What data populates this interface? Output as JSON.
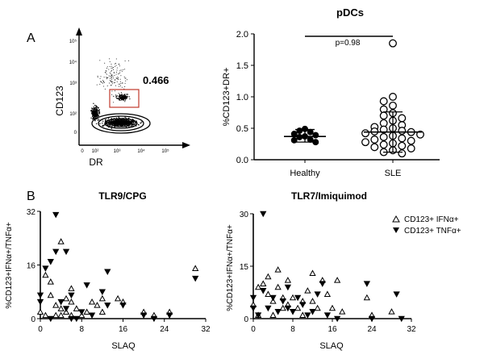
{
  "panel_labels": {
    "a": "A",
    "b": "B"
  },
  "flow": {
    "y_label": "CD123",
    "x_label": "DR",
    "gate_value": "0.466",
    "gate_color": "#c0392b",
    "y_ticks": [
      "10⁵",
      "10⁴",
      "10³",
      "10²",
      "0"
    ],
    "x_ticks": [
      "0",
      "10²",
      "10³",
      "10⁴",
      "10⁵"
    ]
  },
  "chart_data": [
    {
      "type": "scatter",
      "title": "pDCs",
      "ylabel": "%CD123+DR+",
      "xlabel": "",
      "ylim": [
        0,
        2.0
      ],
      "yticks": [
        "0.0",
        "0.5",
        "1.0",
        "1.5",
        "2.0"
      ],
      "categories": [
        "Healthy",
        "SLE"
      ],
      "annotation": "p=0.98",
      "series": [
        {
          "name": "Healthy",
          "marker": "filled-circle",
          "values": [
            0.49,
            0.46,
            0.44,
            0.41,
            0.39,
            0.37,
            0.36,
            0.32,
            0.31,
            0.28
          ],
          "mean": 0.37,
          "sd_low": 0.28,
          "sd_high": 0.48
        },
        {
          "name": "SLE",
          "marker": "open-circle",
          "values": [
            1.85,
            1.0,
            0.93,
            0.86,
            0.8,
            0.74,
            0.7,
            0.66,
            0.62,
            0.58,
            0.55,
            0.52,
            0.5,
            0.48,
            0.46,
            0.45,
            0.44,
            0.42,
            0.4,
            0.38,
            0.36,
            0.34,
            0.32,
            0.3,
            0.28,
            0.26,
            0.24,
            0.22,
            0.2,
            0.18,
            0.15,
            0.12,
            0.1
          ],
          "mean": 0.44,
          "sd_low": 0.12,
          "sd_high": 0.76
        }
      ]
    },
    {
      "type": "scatter",
      "title": "TLR9/CPG",
      "xlabel": "SLAQ",
      "ylabel": "%CD123+IFNα+/TNFα+",
      "xlim": [
        0,
        32
      ],
      "ylim": [
        0,
        32
      ],
      "xticks": [
        "0",
        "8",
        "16",
        "24",
        "32"
      ],
      "yticks": [
        "0",
        "16",
        "32"
      ],
      "series": [
        {
          "name": "CD123+ IFNα+",
          "marker": "open-triangle",
          "points": [
            [
              0,
              2
            ],
            [
              1,
              13
            ],
            [
              2,
              11
            ],
            [
              2,
              7
            ],
            [
              3,
              4
            ],
            [
              3,
              1
            ],
            [
              4,
              23
            ],
            [
              4,
              3
            ],
            [
              5,
              6
            ],
            [
              5,
              2
            ],
            [
              6,
              9
            ],
            [
              6,
              5
            ],
            [
              6,
              1
            ],
            [
              7,
              3
            ],
            [
              8,
              1
            ],
            [
              9,
              2
            ],
            [
              10,
              5
            ],
            [
              11,
              4
            ],
            [
              12,
              6
            ],
            [
              12,
              2
            ],
            [
              15,
              6
            ],
            [
              16,
              5
            ],
            [
              20,
              2
            ],
            [
              22,
              1
            ],
            [
              25,
              2
            ],
            [
              30,
              15
            ],
            [
              1,
              1
            ],
            [
              4,
              1
            ]
          ]
        },
        {
          "name": "CD123+ TNFα+",
          "marker": "filled-triangle",
          "points": [
            [
              0,
              7
            ],
            [
              0,
              5
            ],
            [
              1,
              15
            ],
            [
              2,
              17
            ],
            [
              3,
              31
            ],
            [
              3,
              20
            ],
            [
              4,
              5
            ],
            [
              5,
              20
            ],
            [
              5,
              3
            ],
            [
              6,
              7
            ],
            [
              7,
              0
            ],
            [
              8,
              2
            ],
            [
              9,
              10
            ],
            [
              10,
              1
            ],
            [
              12,
              8
            ],
            [
              13,
              14
            ],
            [
              13,
              4
            ],
            [
              16,
              4
            ],
            [
              20,
              1
            ],
            [
              22,
              0
            ],
            [
              25,
              1
            ],
            [
              30,
              12
            ],
            [
              2,
              0
            ],
            [
              6,
              0
            ]
          ]
        }
      ]
    },
    {
      "type": "scatter",
      "title": "TLR7/Imiquimod",
      "xlabel": "SLAQ",
      "ylabel": "%CD123+IFNα+/TNFα+",
      "xlim": [
        0,
        32
      ],
      "ylim": [
        0,
        30
      ],
      "xticks": [
        "0",
        "8",
        "16",
        "24",
        "32"
      ],
      "yticks": [
        "0",
        "15",
        "30"
      ],
      "legend": {
        "position": "top-right",
        "entries": [
          "CD123+ IFNα+",
          "CD123+ TNFα+"
        ]
      },
      "series": [
        {
          "name": "CD123+ IFNα+",
          "marker": "open-triangle",
          "points": [
            [
              0,
              4
            ],
            [
              1,
              9
            ],
            [
              2,
              10
            ],
            [
              3,
              12
            ],
            [
              3,
              7
            ],
            [
              4,
              5
            ],
            [
              5,
              14
            ],
            [
              5,
              9
            ],
            [
              6,
              6
            ],
            [
              6,
              3
            ],
            [
              7,
              11
            ],
            [
              7,
              4
            ],
            [
              8,
              6
            ],
            [
              9,
              3
            ],
            [
              10,
              5
            ],
            [
              10,
              1
            ],
            [
              11,
              8
            ],
            [
              12,
              13
            ],
            [
              12,
              5
            ],
            [
              13,
              3
            ],
            [
              14,
              11
            ],
            [
              15,
              7
            ],
            [
              16,
              3
            ],
            [
              17,
              11
            ],
            [
              18,
              2
            ],
            [
              23,
              6
            ],
            [
              24,
              1
            ],
            [
              28,
              2
            ],
            [
              1,
              1
            ],
            [
              4,
              1
            ]
          ]
        },
        {
          "name": "CD123+ TNFα+",
          "marker": "filled-triangle",
          "points": [
            [
              0,
              6
            ],
            [
              0,
              3
            ],
            [
              1,
              1
            ],
            [
              2,
              30
            ],
            [
              2,
              8
            ],
            [
              3,
              3
            ],
            [
              4,
              6
            ],
            [
              5,
              2
            ],
            [
              6,
              5
            ],
            [
              7,
              9
            ],
            [
              7,
              3
            ],
            [
              8,
              2
            ],
            [
              9,
              6
            ],
            [
              10,
              4
            ],
            [
              11,
              1
            ],
            [
              12,
              2
            ],
            [
              13,
              7
            ],
            [
              14,
              10
            ],
            [
              15,
              1
            ],
            [
              17,
              0
            ],
            [
              23,
              10
            ],
            [
              24,
              0
            ],
            [
              29,
              7
            ],
            [
              30,
              0
            ]
          ]
        }
      ]
    }
  ]
}
